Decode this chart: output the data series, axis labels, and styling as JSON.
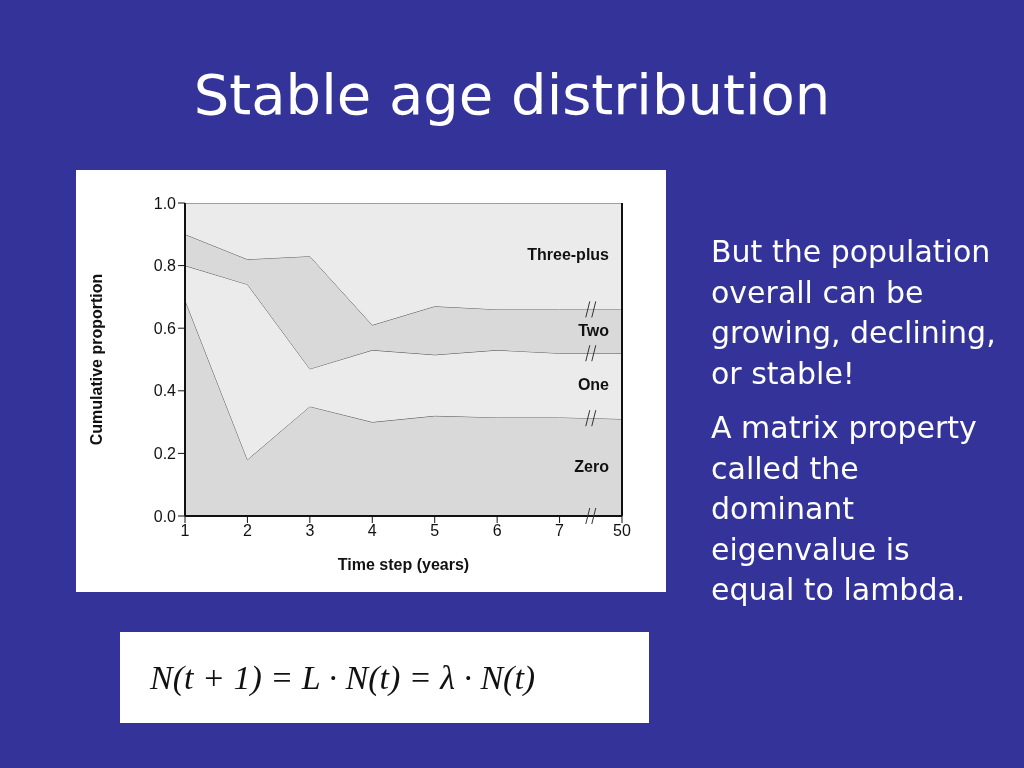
{
  "chart_data": {
    "type": "area",
    "title": "Stable age distribution",
    "xlabel": "Time step (years)",
    "ylabel": "Cumulative proportion",
    "categories": [
      "1",
      "2",
      "3",
      "4",
      "5",
      "6",
      "7",
      "50"
    ],
    "stacked": true,
    "series": [
      {
        "name": "Zero",
        "color": "#d9d9d9",
        "values": [
          0.69,
          0.18,
          0.35,
          0.3,
          0.32,
          0.315,
          0.315,
          0.31
        ]
      },
      {
        "name": "One",
        "color": "#ebebeb",
        "values": [
          0.11,
          0.56,
          0.12,
          0.23,
          0.195,
          0.215,
          0.205,
          0.21
        ]
      },
      {
        "name": "Two",
        "color": "#d9d9d9",
        "values": [
          0.1,
          0.08,
          0.36,
          0.08,
          0.155,
          0.13,
          0.14,
          0.14
        ]
      },
      {
        "name": "Three-plus",
        "color": "#ebebeb",
        "values": [
          0.1,
          0.18,
          0.17,
          0.39,
          0.33,
          0.34,
          0.34,
          0.34
        ]
      }
    ],
    "ylim": [
      0,
      1
    ],
    "yticks": [
      {
        "value": 0,
        "label": "0.0"
      },
      0.2,
      0.4,
      0.6,
      0.8,
      {
        "value": 1,
        "label": "1.0"
      }
    ],
    "annotations": [
      "But the population overall can be growing, declining, or stable!",
      "A matrix property called the dominant eigenvalue is equal to lambda.",
      "N(t + 1) = L · N(t) = λ · N(t)"
    ]
  }
}
